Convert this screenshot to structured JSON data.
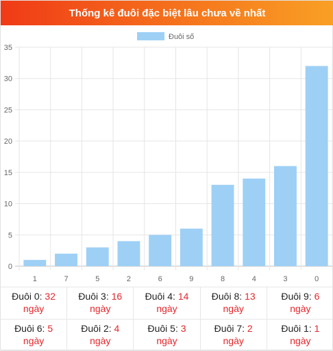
{
  "header": {
    "title": "Thống kê đuôi đặc biệt lâu chưa về nhất"
  },
  "colors": {
    "bar": "#9ed0f5",
    "accent": "#e3262b"
  },
  "chart_data": {
    "type": "bar",
    "categories": [
      "1",
      "7",
      "5",
      "2",
      "6",
      "9",
      "8",
      "4",
      "3",
      "0"
    ],
    "series": [
      {
        "name": "Đuôi số",
        "values": [
          1,
          2,
          3,
          4,
          5,
          6,
          13,
          14,
          16,
          32
        ]
      }
    ],
    "ylim": [
      0,
      35
    ],
    "yticks": [
      0,
      5,
      10,
      15,
      20,
      25,
      30,
      35
    ],
    "grid": true,
    "legend": "top-center"
  },
  "stats": [
    {
      "label": "Đuôi 0:",
      "value": "32",
      "unit": "ngày"
    },
    {
      "label": "Đuôi 3:",
      "value": "16",
      "unit": "ngày"
    },
    {
      "label": "Đuôi 4:",
      "value": "14",
      "unit": "ngày"
    },
    {
      "label": "Đuôi 8:",
      "value": "13",
      "unit": "ngày"
    },
    {
      "label": "Đuôi 9:",
      "value": "6",
      "unit": "ngày"
    },
    {
      "label": "Đuôi 6:",
      "value": "5",
      "unit": "ngày"
    },
    {
      "label": "Đuôi 2:",
      "value": "4",
      "unit": "ngày"
    },
    {
      "label": "Đuôi 5:",
      "value": "3",
      "unit": "ngày"
    },
    {
      "label": "Đuôi 7:",
      "value": "2",
      "unit": "ngày"
    },
    {
      "label": "Đuôi 1:",
      "value": "1",
      "unit": "ngày"
    }
  ]
}
